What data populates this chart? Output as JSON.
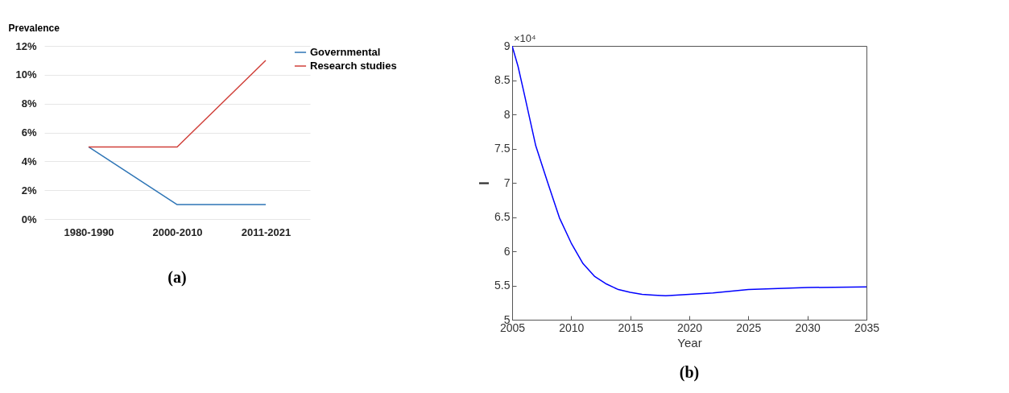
{
  "chart_data": [
    {
      "type": "line",
      "ylabel": "Prevalence",
      "categories": [
        "1980-1990",
        "2000-2010",
        "2011-2021"
      ],
      "series": [
        {
          "name": "Governmental",
          "color": "#2e75b6",
          "values": [
            5,
            1,
            1
          ]
        },
        {
          "name": "Research studies",
          "color": "#d0403a",
          "values": [
            5,
            5,
            11
          ]
        }
      ],
      "ylim": [
        0,
        12
      ],
      "yticks": [
        {
          "value": 0,
          "label": "0%"
        },
        {
          "value": 2,
          "label": "2%"
        },
        {
          "value": 4,
          "label": "4%"
        },
        {
          "value": 6,
          "label": "6%"
        },
        {
          "value": 8,
          "label": "8%"
        },
        {
          "value": 10,
          "label": "10%"
        },
        {
          "value": 12,
          "label": "12%"
        }
      ],
      "grid": "y",
      "legend": "right",
      "annotations": [
        "(a)"
      ]
    },
    {
      "type": "line",
      "xlabel": "Year",
      "ylabel": "I",
      "series": [
        {
          "color": "#0000ff",
          "x": [
            2005,
            2005.5,
            2006,
            2007,
            2008,
            2009,
            2010,
            2011,
            2012,
            2013,
            2014,
            2015,
            2016,
            2017,
            2018,
            2020,
            2022,
            2025,
            2028,
            2030,
            2035
          ],
          "values": [
            9,
            8.7,
            8.32,
            7.54,
            7.01,
            6.49,
            6.12,
            5.82,
            5.63,
            5.52,
            5.44,
            5.4,
            5.37,
            5.36,
            5.35,
            5.37,
            5.39,
            5.44,
            5.46,
            5.47,
            5.48
          ]
        }
      ],
      "xlim": [
        2005,
        2035
      ],
      "xticks": [
        2005,
        2010,
        2015,
        2020,
        2025,
        2030,
        2035
      ],
      "ylim": [
        5,
        9
      ],
      "yticks": [
        5,
        5.5,
        6,
        6.5,
        7,
        7.5,
        8,
        8.5,
        9
      ],
      "grid": false,
      "legend": false,
      "annotations": [
        "×10⁴",
        "(b)"
      ]
    }
  ]
}
